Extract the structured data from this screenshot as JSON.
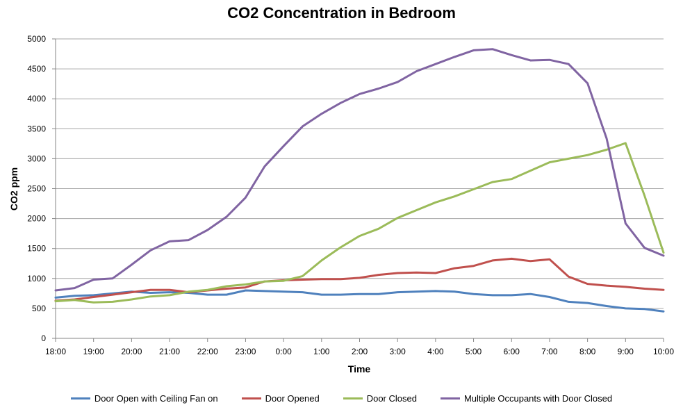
{
  "chart_data": {
    "type": "line",
    "title": "CO2 Concentration in Bedroom",
    "xlabel": "Time",
    "ylabel": "CO2 ppm",
    "ylim": [
      0,
      5000
    ],
    "yticks": [
      0,
      500,
      1000,
      1500,
      2000,
      2500,
      3000,
      3500,
      4000,
      4500,
      5000
    ],
    "grid": true,
    "legend_position": "bottom",
    "x": [
      "18:00",
      "18:30",
      "19:00",
      "19:30",
      "20:00",
      "20:30",
      "21:00",
      "21:30",
      "22:00",
      "22:30",
      "23:00",
      "23:30",
      "0:00",
      "0:30",
      "1:00",
      "1:30",
      "2:00",
      "2:30",
      "3:00",
      "3:30",
      "4:00",
      "4:30",
      "5:00",
      "5:30",
      "6:00",
      "6:30",
      "7:00",
      "7:30",
      "8:00",
      "8:30",
      "9:00",
      "9:30",
      "10:00"
    ],
    "xtick_labels": [
      "18:00",
      "19:00",
      "20:00",
      "21:00",
      "22:00",
      "23:00",
      "0:00",
      "1:00",
      "2:00",
      "3:00",
      "4:00",
      "5:00",
      "6:00",
      "7:00",
      "8:00",
      "9:00",
      "10:00"
    ],
    "series": [
      {
        "name": "Door Open with Ceiling Fan on",
        "color": "#4f81bd",
        "values": [
          680,
          710,
          720,
          750,
          780,
          760,
          770,
          760,
          730,
          730,
          800,
          790,
          780,
          770,
          730,
          730,
          740,
          740,
          770,
          780,
          790,
          780,
          740,
          720,
          720,
          740,
          690,
          610,
          590,
          540,
          500,
          490,
          450
        ]
      },
      {
        "name": "Door Opened",
        "color": "#c0504d",
        "values": [
          630,
          650,
          690,
          730,
          770,
          810,
          810,
          770,
          800,
          830,
          850,
          950,
          970,
          980,
          990,
          990,
          1010,
          1060,
          1090,
          1100,
          1090,
          1170,
          1210,
          1300,
          1330,
          1290,
          1320,
          1030,
          910,
          880,
          860,
          830,
          810
        ]
      },
      {
        "name": "Door Closed",
        "color": "#9bbb59",
        "values": [
          620,
          640,
          600,
          610,
          650,
          700,
          720,
          780,
          810,
          870,
          900,
          950,
          960,
          1040,
          1300,
          1520,
          1710,
          1830,
          2010,
          2140,
          2270,
          2370,
          2490,
          2610,
          2660,
          2800,
          2940,
          3000,
          3060,
          3150,
          3260,
          2380,
          1430
        ]
      },
      {
        "name": "Multiple Occupants with Door Closed",
        "color": "#8064a2",
        "values": [
          800,
          840,
          980,
          1000,
          1230,
          1470,
          1620,
          1640,
          1810,
          2030,
          2350,
          2870,
          3210,
          3540,
          3750,
          3930,
          4080,
          4170,
          4280,
          4460,
          4580,
          4700,
          4810,
          4830,
          4730,
          4640,
          4650,
          4580,
          4260,
          3340,
          1920,
          1510,
          1380
        ]
      }
    ]
  }
}
